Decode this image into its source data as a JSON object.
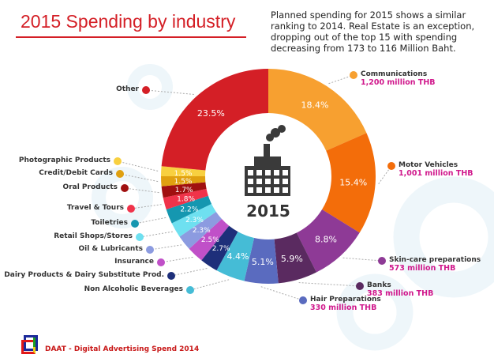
{
  "title": "2015 Spending by industry",
  "description": "Planned spending for 2015 shows a similar ranking to 2014. Real Estate is an exception, dropping out of the top 15 with spending decreasing from 173 to 116 Million Baht.",
  "center_label": "2015",
  "center_icon": "factory-icon",
  "footer": "DAAT - Digital Advertising Spend 2014",
  "chart_data": {
    "type": "pie",
    "donut": true,
    "title": "2015 Spending by industry",
    "slices": [
      {
        "label": "Communications",
        "value": 18.4,
        "pct": "18.4%",
        "amount": "1,200 million THB",
        "color": "#f7a030"
      },
      {
        "label": "Motor Vehicles",
        "value": 15.4,
        "pct": "15.4%",
        "amount": "1,001 million THB",
        "color": "#f36d0a"
      },
      {
        "label": "Skin-care preparations",
        "value": 8.8,
        "pct": "8.8%",
        "amount": "573 million THB",
        "color": "#8e3a96"
      },
      {
        "label": "Banks",
        "value": 5.9,
        "pct": "5.9%",
        "amount": "383 million THB",
        "color": "#5a2a60"
      },
      {
        "label": "Hair Preparations",
        "value": 5.1,
        "pct": "5.1%",
        "amount": "330 million THB",
        "color": "#5a6bbf"
      },
      {
        "label": "Non Alcoholic Beverages",
        "value": 4.4,
        "pct": "4.4%",
        "color": "#45bcd6"
      },
      {
        "label": "Dairy Products & Dairy Substitute Prod.",
        "value": 2.7,
        "pct": "2.7%",
        "color": "#1e2f7a"
      },
      {
        "label": "Insurance",
        "value": 2.5,
        "pct": "2.5%",
        "color": "#c050c8"
      },
      {
        "label": "Oil & Lubricants",
        "value": 2.3,
        "pct": "2.3%",
        "color": "#8c9be0"
      },
      {
        "label": "Retail Shops/Stores",
        "value": 2.3,
        "pct": "2.3%",
        "color": "#6ee0f0"
      },
      {
        "label": "Toiletries",
        "value": 2.2,
        "pct": "2.2%",
        "color": "#1597b0"
      },
      {
        "label": "Travel & Tours",
        "value": 1.8,
        "pct": "1.8%",
        "color": "#f0334a"
      },
      {
        "label": "Oral Products",
        "value": 1.7,
        "pct": "1.7%",
        "color": "#a01010"
      },
      {
        "label": "Credit/Debit Cards",
        "value": 1.5,
        "pct": "1.5%",
        "color": "#e0a010"
      },
      {
        "label": "Photographic Products",
        "value": 1.5,
        "pct": "1.5%",
        "color": "#f8d040"
      },
      {
        "label": "Other",
        "value": 23.5,
        "pct": "23.5%",
        "color": "#d41f26"
      }
    ]
  }
}
